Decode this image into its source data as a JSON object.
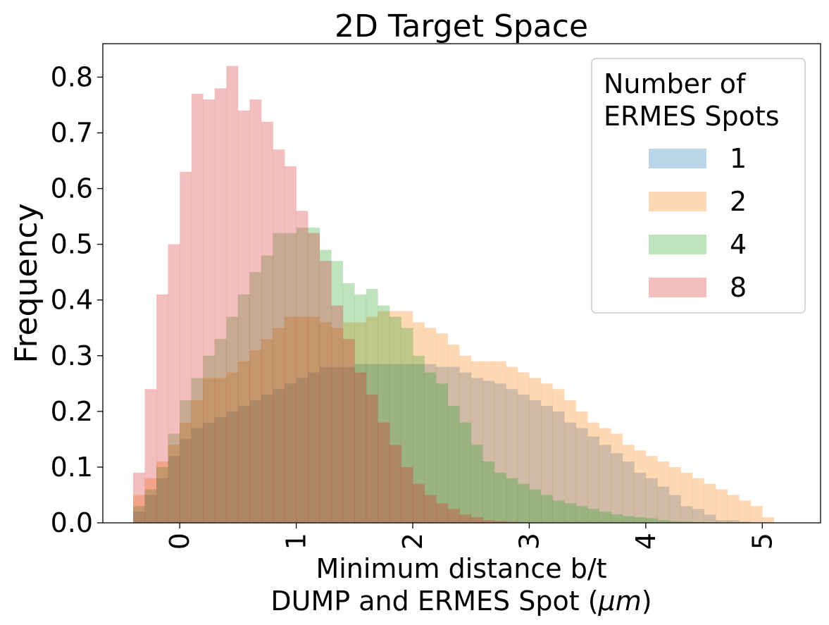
{
  "chart_data": {
    "type": "histogram",
    "title": "2D Target Space",
    "xlabel_line1": "Minimum distance b/t",
    "xlabel_line2_prefix": "DUMP and ERMES Spot (",
    "xlabel_unit": "μm",
    "xlabel_line2_suffix": ")",
    "ylabel": "Frequency",
    "xlim": [
      -0.66,
      5.5
    ],
    "ylim": [
      0,
      0.86
    ],
    "x_ticks": [
      0,
      1,
      2,
      3,
      4,
      5
    ],
    "y_ticks": [
      0.0,
      0.1,
      0.2,
      0.3,
      0.4,
      0.5,
      0.6,
      0.7,
      0.8
    ],
    "grid": false,
    "legend": {
      "title_line1": "Number of",
      "title_line2": "ERMES Spots",
      "placement": "upper right"
    },
    "bin_start": -0.4,
    "bin_width": 0.1,
    "series": [
      {
        "name": "1",
        "color": "#1f77b4",
        "values": [
          0.02,
          0.05,
          0.08,
          0.12,
          0.15,
          0.17,
          0.18,
          0.19,
          0.2,
          0.21,
          0.22,
          0.23,
          0.24,
          0.25,
          0.26,
          0.27,
          0.28,
          0.28,
          0.28,
          0.285,
          0.285,
          0.285,
          0.285,
          0.285,
          0.285,
          0.285,
          0.28,
          0.28,
          0.27,
          0.26,
          0.255,
          0.25,
          0.24,
          0.23,
          0.22,
          0.21,
          0.2,
          0.18,
          0.17,
          0.155,
          0.14,
          0.125,
          0.11,
          0.09,
          0.08,
          0.065,
          0.05,
          0.03,
          0.025,
          0.015,
          0.005,
          0.005,
          0.002,
          0.0,
          0.0,
          0.0
        ]
      },
      {
        "name": "2",
        "color": "#ff7f0e",
        "values": [
          0.05,
          0.08,
          0.11,
          0.14,
          0.18,
          0.22,
          0.26,
          0.26,
          0.27,
          0.29,
          0.31,
          0.33,
          0.35,
          0.37,
          0.37,
          0.37,
          0.36,
          0.35,
          0.36,
          0.36,
          0.37,
          0.38,
          0.38,
          0.38,
          0.36,
          0.35,
          0.34,
          0.32,
          0.3,
          0.29,
          0.29,
          0.29,
          0.28,
          0.27,
          0.26,
          0.25,
          0.24,
          0.22,
          0.2,
          0.18,
          0.17,
          0.16,
          0.14,
          0.13,
          0.12,
          0.11,
          0.1,
          0.09,
          0.08,
          0.07,
          0.06,
          0.05,
          0.04,
          0.03,
          0.01,
          0.0
        ]
      },
      {
        "name": "4",
        "color": "#2ca02c",
        "values": [
          0.03,
          0.06,
          0.1,
          0.16,
          0.22,
          0.26,
          0.3,
          0.33,
          0.37,
          0.41,
          0.45,
          0.48,
          0.52,
          0.52,
          0.53,
          0.53,
          0.49,
          0.47,
          0.43,
          0.41,
          0.42,
          0.39,
          0.37,
          0.35,
          0.3,
          0.27,
          0.25,
          0.21,
          0.18,
          0.14,
          0.11,
          0.09,
          0.08,
          0.07,
          0.06,
          0.05,
          0.04,
          0.035,
          0.03,
          0.025,
          0.02,
          0.015,
          0.012,
          0.01,
          0.008,
          0.005,
          0.003,
          0.002,
          0.001,
          0.0,
          0.0,
          0.0,
          0.0,
          0.0,
          0.0,
          0.0
        ]
      },
      {
        "name": "8",
        "color": "#d62728",
        "values": [
          0.09,
          0.24,
          0.41,
          0.5,
          0.63,
          0.77,
          0.76,
          0.78,
          0.82,
          0.74,
          0.76,
          0.72,
          0.67,
          0.64,
          0.56,
          0.52,
          0.47,
          0.39,
          0.33,
          0.27,
          0.23,
          0.18,
          0.14,
          0.1,
          0.07,
          0.05,
          0.035,
          0.025,
          0.015,
          0.01,
          0.005,
          0.003,
          0.002,
          0.001,
          0.0,
          0.0,
          0.0,
          0.0,
          0.0,
          0.0,
          0.0,
          0.0,
          0.0,
          0.0,
          0.0,
          0.0,
          0.0,
          0.0,
          0.0,
          0.0,
          0.0,
          0.0,
          0.0,
          0.0,
          0.0,
          0.0
        ]
      }
    ]
  }
}
